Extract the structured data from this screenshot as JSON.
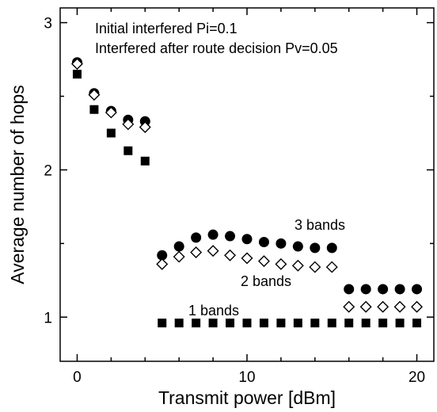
{
  "chart_data": {
    "type": "scatter",
    "xlabel": "Transmit power  [dBm]",
    "ylabel": "Average number of hops",
    "xlim": [
      -1,
      21
    ],
    "ylim": [
      0.7,
      3.1
    ],
    "xticks": [
      0,
      10,
      20
    ],
    "yticks": [
      1,
      2,
      3
    ],
    "xtick_labels": [
      "0",
      "10",
      "20"
    ],
    "ytick_labels": [
      "1",
      "2",
      "3"
    ],
    "grid": false,
    "annotations": [
      "Initial interfered Pi=0.1",
      "Interfered after route decision Pv=0.05"
    ],
    "series": [
      {
        "name": "3 bands",
        "marker": "filled-circle",
        "x": [
          0,
          1,
          2,
          3,
          4,
          5,
          6,
          7,
          8,
          9,
          10,
          11,
          12,
          13,
          14,
          15,
          16,
          17,
          18,
          19,
          20
        ],
        "y": [
          2.73,
          2.52,
          2.4,
          2.34,
          2.33,
          1.42,
          1.48,
          1.54,
          1.56,
          1.55,
          1.53,
          1.51,
          1.5,
          1.48,
          1.47,
          1.47,
          1.19,
          1.19,
          1.19,
          1.19,
          1.19
        ]
      },
      {
        "name": "2 bands",
        "marker": "open-diamond",
        "x": [
          0,
          1,
          2,
          3,
          4,
          5,
          6,
          7,
          8,
          9,
          10,
          11,
          12,
          13,
          14,
          15,
          16,
          17,
          18,
          19,
          20
        ],
        "y": [
          2.72,
          2.51,
          2.39,
          2.31,
          2.29,
          1.36,
          1.41,
          1.44,
          1.45,
          1.42,
          1.4,
          1.38,
          1.36,
          1.35,
          1.34,
          1.34,
          1.07,
          1.07,
          1.07,
          1.07,
          1.07
        ]
      },
      {
        "name": "1 bands",
        "marker": "filled-square",
        "x": [
          0,
          1,
          2,
          3,
          4,
          5,
          6,
          7,
          8,
          9,
          10,
          11,
          12,
          13,
          14,
          15,
          16,
          17,
          18,
          19,
          20
        ],
        "y": [
          2.65,
          2.41,
          2.25,
          2.13,
          2.06,
          0.96,
          0.96,
          0.96,
          0.96,
          0.96,
          0.96,
          0.96,
          0.96,
          0.96,
          0.96,
          0.96,
          0.96,
          0.96,
          0.96,
          0.96,
          0.96
        ]
      }
    ]
  }
}
